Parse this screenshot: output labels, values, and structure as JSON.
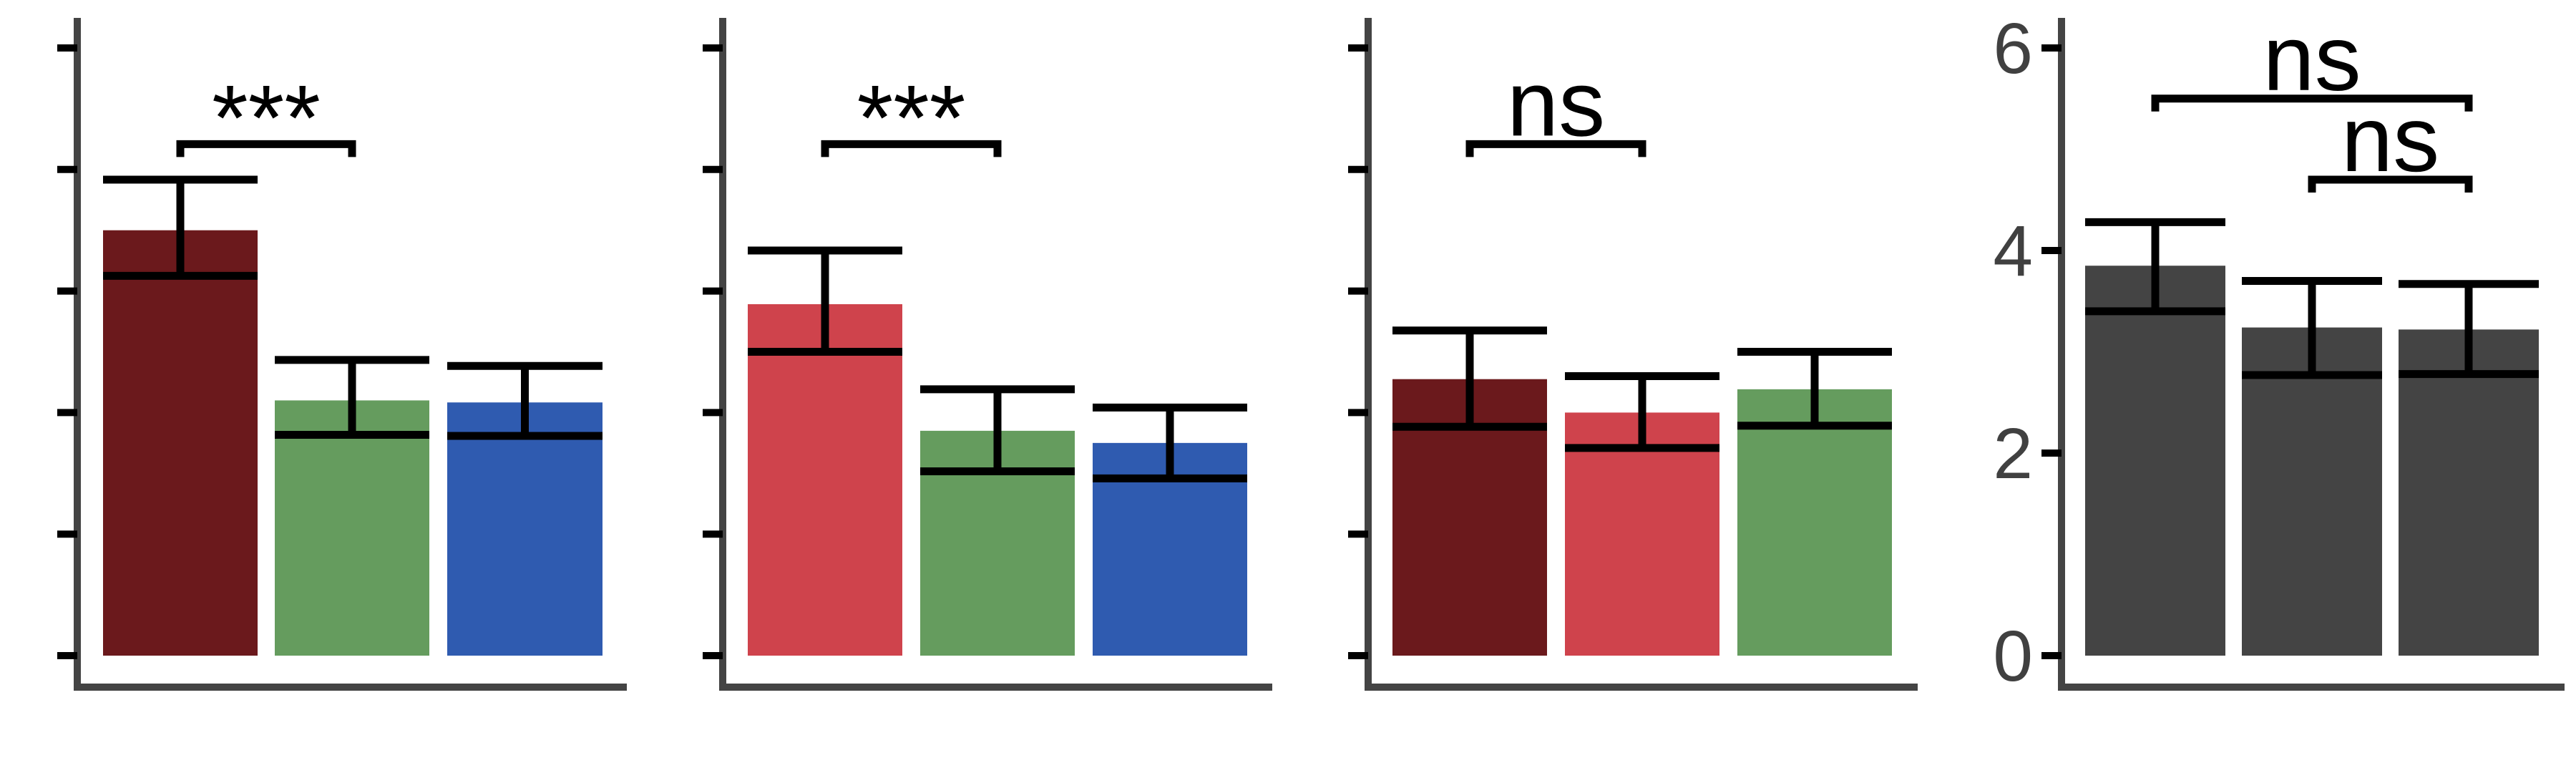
{
  "chart_data": {
    "type": "bar",
    "title": "",
    "xlabel": "",
    "ylabel": "",
    "ylim": [
      0,
      6.2
    ],
    "grid": false,
    "legend": "none",
    "error_bars": true,
    "panels": [
      {
        "y_tick_labels_shown": false,
        "bars": [
          {
            "value": 4.2,
            "err_low": 3.75,
            "err_high": 4.7,
            "color": "#6b191c"
          },
          {
            "value": 2.52,
            "err_low": 2.18,
            "err_high": 2.92,
            "color": "#659c5e"
          },
          {
            "value": 2.5,
            "err_low": 2.17,
            "err_high": 2.86,
            "color": "#2f5bb0"
          }
        ],
        "significance": [
          {
            "bars": [
              0,
              1
            ],
            "label": "***",
            "y": 5.05
          }
        ]
      },
      {
        "y_tick_labels_shown": false,
        "bars": [
          {
            "value": 3.47,
            "err_low": 3.0,
            "err_high": 4.0,
            "color": "#cf434c"
          },
          {
            "value": 2.22,
            "err_low": 1.82,
            "err_high": 2.63,
            "color": "#659c5e"
          },
          {
            "value": 2.1,
            "err_low": 1.75,
            "err_high": 2.45,
            "color": "#2f5bb0"
          }
        ],
        "significance": [
          {
            "bars": [
              0,
              1
            ],
            "label": "***",
            "y": 5.05
          }
        ]
      },
      {
        "y_tick_labels_shown": false,
        "bars": [
          {
            "value": 2.73,
            "err_low": 2.26,
            "err_high": 3.21,
            "color": "#6b191c"
          },
          {
            "value": 2.4,
            "err_low": 2.05,
            "err_high": 2.76,
            "color": "#cf434c"
          },
          {
            "value": 2.63,
            "err_low": 2.27,
            "err_high": 3.0,
            "color": "#659c5e"
          }
        ],
        "significance": [
          {
            "bars": [
              0,
              1
            ],
            "label": "ns",
            "y": 5.05
          }
        ]
      },
      {
        "y_tick_labels_shown": true,
        "y_ticks": [
          "0",
          "2",
          "4",
          "6"
        ],
        "bars": [
          {
            "value": 3.85,
            "err_low": 3.4,
            "err_high": 4.28,
            "color": "#444444"
          },
          {
            "value": 3.24,
            "err_low": 2.77,
            "err_high": 3.7,
            "color": "#444444"
          },
          {
            "value": 3.22,
            "err_low": 2.78,
            "err_high": 3.67,
            "color": "#444444"
          }
        ],
        "significance": [
          {
            "bars": [
              0,
              2
            ],
            "label": "ns",
            "y": 5.5
          },
          {
            "bars": [
              1,
              2
            ],
            "label": "ns",
            "y": 4.7
          }
        ]
      }
    ]
  }
}
